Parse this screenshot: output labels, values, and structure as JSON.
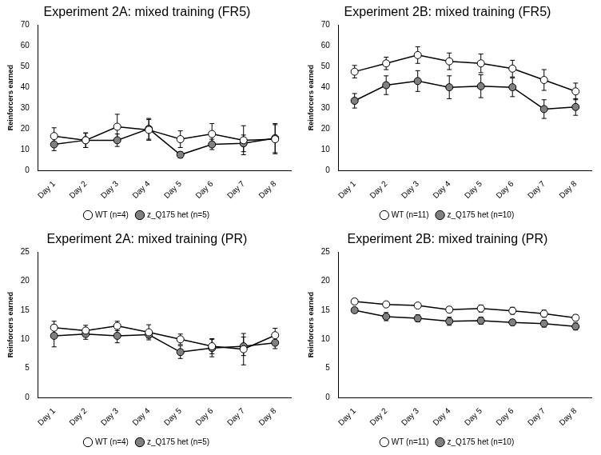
{
  "chart_data": [
    {
      "type": "line",
      "title": "Experiment 2A: mixed training (FR5)",
      "y_label": "Reinforcers earned",
      "categories": [
        "Day 1",
        "Day 2",
        "Day 3",
        "Day 4",
        "Day 5",
        "Day 6",
        "Day 7",
        "Day 8"
      ],
      "ylim": [
        0,
        70
      ],
      "yticks": [
        0,
        10,
        20,
        30,
        40,
        50,
        60,
        70
      ],
      "grid": false,
      "legend": "bottom",
      "marker": "circle",
      "series": [
        {
          "name": "WT (n=4)",
          "color": "#ffffff",
          "values": [
            16.5,
            14.5,
            21,
            19.5,
            15,
            17.5,
            14.5,
            15
          ],
          "errors": [
            4,
            3.5,
            6,
            5,
            4,
            5,
            7,
            7
          ]
        },
        {
          "name": "z_Q175 het (n=5)",
          "color": "#808080",
          "values": [
            12.5,
            14.5,
            14.5,
            20,
            7.5,
            12.5,
            13,
            15.5
          ],
          "errors": [
            3,
            3.5,
            3,
            5,
            1.5,
            2.5,
            4,
            7
          ]
        }
      ]
    },
    {
      "type": "line",
      "title": "Experiment 2B: mixed training (FR5)",
      "y_label": "Reinforcers earned",
      "categories": [
        "Day 1",
        "Day 2",
        "Day 3",
        "Day 4",
        "Day 5",
        "Day 6",
        "Day 7",
        "Day 8"
      ],
      "ylim": [
        0,
        70
      ],
      "yticks": [
        0,
        10,
        20,
        30,
        40,
        50,
        60,
        70
      ],
      "grid": false,
      "legend": "bottom",
      "marker": "circle",
      "series": [
        {
          "name": "WT (n=11)",
          "color": "#ffffff",
          "values": [
            47.5,
            51.5,
            55.5,
            52.5,
            51.5,
            49,
            43.5,
            38
          ],
          "errors": [
            3,
            3,
            4,
            4,
            4.5,
            4,
            5,
            4
          ]
        },
        {
          "name": "z_Q175 het (n=10)",
          "color": "#808080",
          "values": [
            33.5,
            41,
            43,
            40,
            40.5,
            40,
            29.5,
            30.5
          ],
          "errors": [
            3.5,
            4.5,
            5,
            5.5,
            5.5,
            4.5,
            4.5,
            4
          ]
        }
      ]
    },
    {
      "type": "line",
      "title": "Experiment 2A: mixed training (PR)",
      "y_label": "Reinforcers earned",
      "categories": [
        "Day 1",
        "Day 2",
        "Day 3",
        "Day 4",
        "Day 5",
        "Day 6",
        "Day 7",
        "Day 8"
      ],
      "ylim": [
        0,
        25
      ],
      "yticks": [
        0,
        5,
        10,
        15,
        20,
        25
      ],
      "grid": false,
      "legend": "bottom",
      "marker": "circle",
      "series": [
        {
          "name": "WT (n=4)",
          "color": "#ffffff",
          "values": [
            12,
            11.5,
            12.3,
            11.2,
            10,
            8.8,
            8.3,
            10.7
          ],
          "errors": [
            1.1,
            0.9,
            0.8,
            1.3,
            0.9,
            1.3,
            2.7,
            1.2
          ]
        },
        {
          "name": "z_Q175 het (n=5)",
          "color": "#808080",
          "values": [
            10.6,
            10.9,
            10.6,
            10.8,
            7.8,
            8.5,
            8.8,
            9.4
          ],
          "errors": [
            1.9,
            0.9,
            1.2,
            0.6,
            1.1,
            1.5,
            1.6,
            1
          ]
        }
      ]
    },
    {
      "type": "line",
      "title": "Experiment 2B: mixed training (PR)",
      "y_label": "Reinforcers earned",
      "categories": [
        "Day 1",
        "Day 2",
        "Day 3",
        "Day 4",
        "Day 5",
        "Day 6",
        "Day 7",
        "Day 8"
      ],
      "ylim": [
        0,
        25
      ],
      "yticks": [
        0,
        5,
        10,
        15,
        20,
        25
      ],
      "grid": false,
      "legend": "bottom",
      "marker": "circle",
      "series": [
        {
          "name": "WT (n=11)",
          "color": "#ffffff",
          "values": [
            16.5,
            16,
            15.8,
            15.1,
            15.3,
            14.9,
            14.4,
            13.7
          ],
          "errors": [
            0.5,
            0.4,
            0.3,
            0.5,
            0.6,
            0.6,
            0.6,
            0.5
          ]
        },
        {
          "name": "z_Q175 het (n=10)",
          "color": "#808080",
          "values": [
            15,
            13.9,
            13.6,
            13.1,
            13.2,
            12.9,
            12.7,
            12.2
          ],
          "errors": [
            0.4,
            0.7,
            0.6,
            0.7,
            0.6,
            0.5,
            0.6,
            0.6
          ]
        }
      ]
    }
  ]
}
